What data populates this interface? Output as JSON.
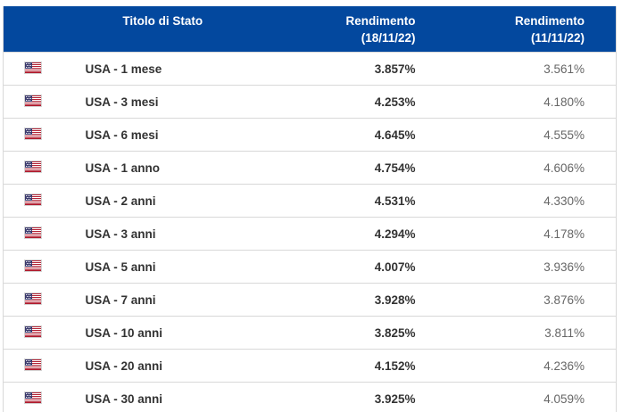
{
  "table": {
    "header": {
      "title": "Titolo di Stato",
      "yield_current": {
        "label": "Rendimento",
        "date": "(18/11/22)"
      },
      "yield_previous": {
        "label": "Rendimento",
        "date": "(11/11/22)"
      }
    },
    "rows": [
      {
        "flag": "us-flag-icon",
        "name": "USA - 1 mese",
        "yield_current": "3.857%",
        "yield_previous": "3.561%"
      },
      {
        "flag": "us-flag-icon",
        "name": "USA - 3 mesi",
        "yield_current": "4.253%",
        "yield_previous": "4.180%"
      },
      {
        "flag": "us-flag-icon",
        "name": "USA - 6 mesi",
        "yield_current": "4.645%",
        "yield_previous": "4.555%"
      },
      {
        "flag": "us-flag-icon",
        "name": "USA - 1 anno",
        "yield_current": "4.754%",
        "yield_previous": "4.606%"
      },
      {
        "flag": "us-flag-icon",
        "name": "USA - 2 anni",
        "yield_current": "4.531%",
        "yield_previous": "4.330%"
      },
      {
        "flag": "us-flag-icon",
        "name": "USA - 3 anni",
        "yield_current": "4.294%",
        "yield_previous": "4.178%"
      },
      {
        "flag": "us-flag-icon",
        "name": "USA - 5 anni",
        "yield_current": "4.007%",
        "yield_previous": "3.936%"
      },
      {
        "flag": "us-flag-icon",
        "name": "USA - 7 anni",
        "yield_current": "3.928%",
        "yield_previous": "3.876%"
      },
      {
        "flag": "us-flag-icon",
        "name": "USA - 10 anni",
        "yield_current": "3.825%",
        "yield_previous": "3.811%"
      },
      {
        "flag": "us-flag-icon",
        "name": "USA - 20 anni",
        "yield_current": "4.152%",
        "yield_previous": "4.236%"
      },
      {
        "flag": "us-flag-icon",
        "name": "USA - 30 anni",
        "yield_current": "3.925%",
        "yield_previous": "4.059%"
      }
    ]
  },
  "colors": {
    "header_bg": "#03489E",
    "header_fg": "#ffffff",
    "border": "#d8d8d8",
    "text_strong": "#333333",
    "text_muted": "#666666",
    "flag_red": "#B22234",
    "flag_navy": "#3C3B6E"
  }
}
